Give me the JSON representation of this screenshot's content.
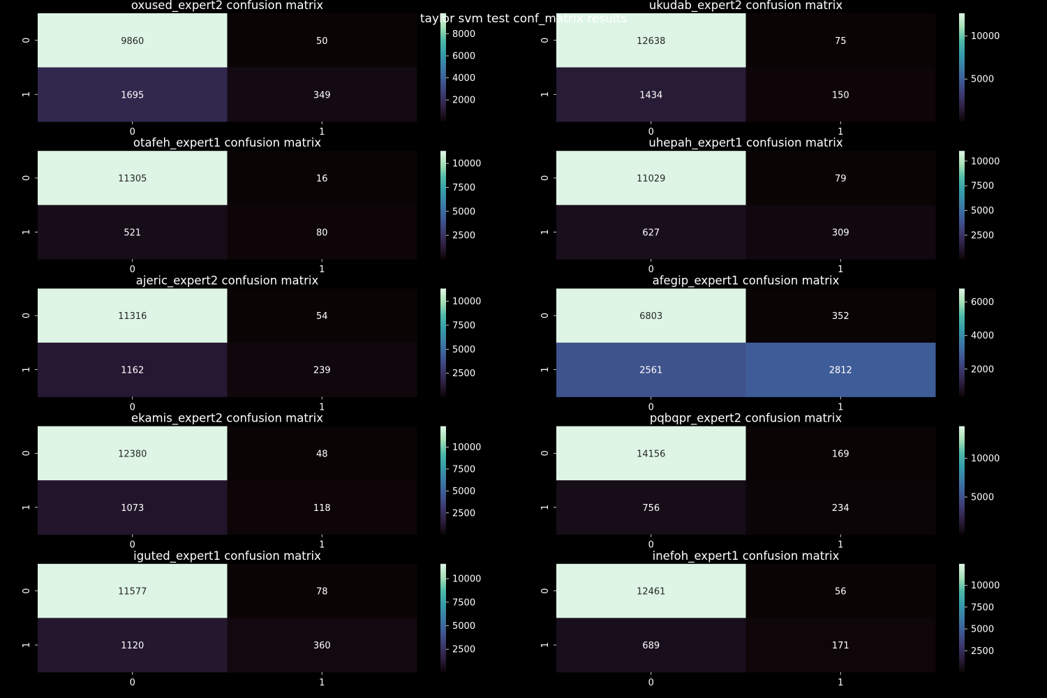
{
  "page": {
    "title": "taylor svm test conf_matrix results"
  },
  "colormap": {
    "name": "mako",
    "stops": [
      "#0b0405",
      "#2d1e3e",
      "#3d3a6e",
      "#3e5a96",
      "#3b7ca6",
      "#359ca9",
      "#4fbaa9",
      "#a6dfb5",
      "#def5e5"
    ]
  },
  "chart_data": [
    {
      "type": "heatmap",
      "title": "oxused_expert2 confusion matrix",
      "matrix": [
        [
          9860,
          50
        ],
        [
          1695,
          349
        ]
      ],
      "xticks": [
        "0",
        "1"
      ],
      "yticks": [
        "0",
        "1"
      ],
      "colorbar_ticks": [
        2000,
        4000,
        6000,
        8000
      ]
    },
    {
      "type": "heatmap",
      "title": "ukudab_expert2 confusion matrix",
      "matrix": [
        [
          12638,
          75
        ],
        [
          1434,
          150
        ]
      ],
      "xticks": [
        "0",
        "1"
      ],
      "yticks": [
        "0",
        "1"
      ],
      "colorbar_ticks": [
        5000,
        10000
      ]
    },
    {
      "type": "heatmap",
      "title": "otafeh_expert1 confusion matrix",
      "matrix": [
        [
          11305,
          16
        ],
        [
          521,
          80
        ]
      ],
      "xticks": [
        "0",
        "1"
      ],
      "yticks": [
        "0",
        "1"
      ],
      "colorbar_ticks": [
        2500,
        5000,
        7500,
        10000
      ]
    },
    {
      "type": "heatmap",
      "title": "uhepah_expert1 confusion matrix",
      "matrix": [
        [
          11029,
          79
        ],
        [
          627,
          309
        ]
      ],
      "xticks": [
        "0",
        "1"
      ],
      "yticks": [
        "0",
        "1"
      ],
      "colorbar_ticks": [
        2500,
        5000,
        7500,
        10000
      ]
    },
    {
      "type": "heatmap",
      "title": "ajeric_expert2 confusion matrix",
      "matrix": [
        [
          11316,
          54
        ],
        [
          1162,
          239
        ]
      ],
      "xticks": [
        "0",
        "1"
      ],
      "yticks": [
        "0",
        "1"
      ],
      "colorbar_ticks": [
        2500,
        5000,
        7500,
        10000
      ]
    },
    {
      "type": "heatmap",
      "title": "afegip_expert1 confusion matrix",
      "matrix": [
        [
          6803,
          352
        ],
        [
          2561,
          2812
        ]
      ],
      "xticks": [
        "0",
        "1"
      ],
      "yticks": [
        "0",
        "1"
      ],
      "colorbar_ticks": [
        2000,
        4000,
        6000
      ]
    },
    {
      "type": "heatmap",
      "title": "ekamis_expert2 confusion matrix",
      "matrix": [
        [
          12380,
          48
        ],
        [
          1073,
          118
        ]
      ],
      "xticks": [
        "0",
        "1"
      ],
      "yticks": [
        "0",
        "1"
      ],
      "colorbar_ticks": [
        2500,
        5000,
        7500,
        10000
      ]
    },
    {
      "type": "heatmap",
      "title": "pqbqpr_expert2 confusion matrix",
      "matrix": [
        [
          14156,
          169
        ],
        [
          756,
          234
        ]
      ],
      "xticks": [
        "0",
        "1"
      ],
      "yticks": [
        "0",
        "1"
      ],
      "colorbar_ticks": [
        5000,
        10000
      ]
    },
    {
      "type": "heatmap",
      "title": "iguted_expert1 confusion matrix",
      "matrix": [
        [
          11577,
          78
        ],
        [
          1120,
          360
        ]
      ],
      "xticks": [
        "0",
        "1"
      ],
      "yticks": [
        "0",
        "1"
      ],
      "colorbar_ticks": [
        2500,
        5000,
        7500,
        10000
      ]
    },
    {
      "type": "heatmap",
      "title": "inefoh_expert1 confusion matrix",
      "matrix": [
        [
          12461,
          56
        ],
        [
          689,
          171
        ]
      ],
      "xticks": [
        "0",
        "1"
      ],
      "yticks": [
        "0",
        "1"
      ],
      "colorbar_ticks": [
        2500,
        5000,
        7500,
        10000
      ]
    }
  ]
}
